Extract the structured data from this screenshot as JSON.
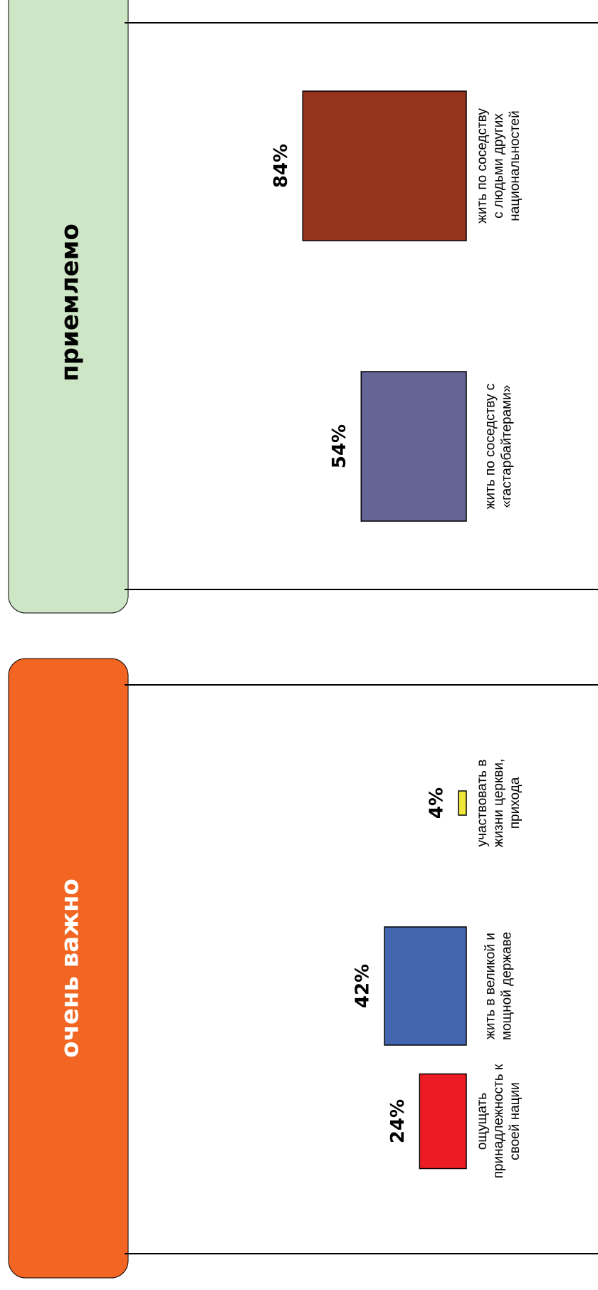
{
  "colors": {
    "important_banner": "#F26522",
    "acceptable_banner": "#CDE6C5",
    "bar_nation": "#ED1C24",
    "bar_power": "#4466B0",
    "bar_church": "#F0E63C",
    "bar_migrants": "#646496",
    "bar_nationalities": "#96331E"
  },
  "chart_data": [
    {
      "type": "bar",
      "title": "очень важно",
      "categories": [
        "ощущать принадлежность к своей нации",
        "жить в великой и мощной державе",
        "участвовать в жизни церкви, прихода"
      ],
      "category_lines": [
        [
          "ощущать",
          "принадлежность к",
          "своей нации"
        ],
        [
          "жить в великой и",
          "мощной державе"
        ],
        [
          "участвовать в",
          "жизни церкви,",
          "прихода"
        ]
      ],
      "values": [
        24,
        42,
        4
      ],
      "labels": [
        "24%",
        "42%",
        "4%"
      ],
      "unit": "%"
    },
    {
      "type": "bar",
      "title": "приемлемо",
      "categories": [
        "жить по соседству с «гастарбайтерами»",
        "жить по соседству с людьми других национальностей"
      ],
      "category_lines": [
        [
          "жить по соседству с",
          "«гастарбайтерами»"
        ],
        [
          "жить по соседству",
          "с людьми других",
          "национальностей"
        ]
      ],
      "values": [
        54,
        84
      ],
      "labels": [
        "54%",
        "84%"
      ],
      "unit": "%"
    }
  ]
}
